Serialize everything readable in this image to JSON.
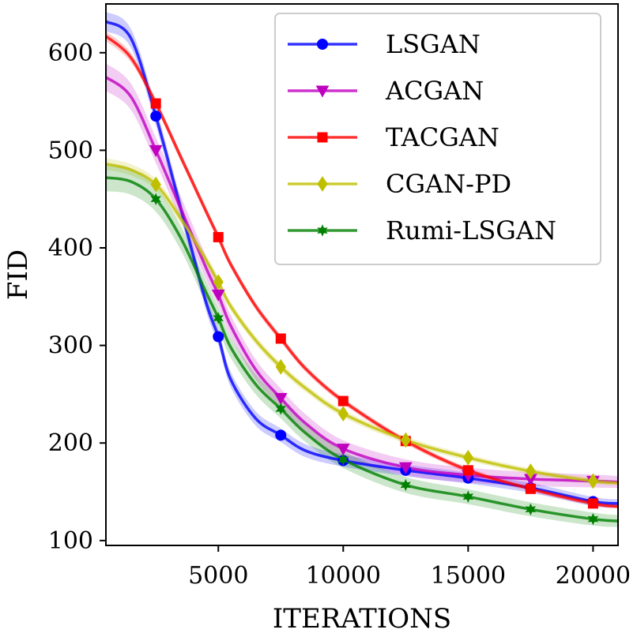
{
  "chart_data": {
    "type": "line",
    "title": "",
    "xlabel": "ITERATIONS",
    "ylabel": "FID",
    "xlim": [
      500,
      21000
    ],
    "ylim": [
      95,
      650
    ],
    "xticks": [
      5000,
      10000,
      15000,
      20000
    ],
    "yticks": [
      100,
      200,
      300,
      400,
      500,
      600
    ],
    "grid": false,
    "legend_position": "top-right",
    "series": [
      {
        "name": "LSGAN",
        "color": "#0000ff",
        "marker": "circle",
        "markers_x": [
          2500,
          5000,
          7500,
          10000,
          12500,
          15000,
          17500,
          20000
        ],
        "markers_y": [
          535,
          309,
          208,
          182,
          172,
          164,
          154,
          140
        ],
        "curve_x": [
          500,
          1500,
          2500,
          3500,
          4500,
          5000,
          5500,
          6500,
          7500,
          8500,
          10000,
          12500,
          15000,
          17500,
          20000,
          21000
        ],
        "curve_y": [
          632,
          615,
          535,
          440,
          345,
          309,
          265,
          225,
          208,
          192,
          182,
          172,
          164,
          154,
          140,
          138
        ],
        "band": 10
      },
      {
        "name": "ACGAN",
        "color": "#bf00bf",
        "marker": "triangle-down",
        "markers_x": [
          2500,
          5000,
          7500,
          10000,
          12500,
          15000,
          17500,
          20000
        ],
        "markers_y": [
          500,
          352,
          246,
          194,
          175,
          167,
          163,
          161
        ],
        "curve_x": [
          500,
          1500,
          2500,
          3500,
          4500,
          5000,
          5500,
          6500,
          7500,
          8500,
          10000,
          12500,
          15000,
          17500,
          20000,
          21000
        ],
        "curve_y": [
          575,
          555,
          500,
          440,
          380,
          352,
          320,
          275,
          246,
          220,
          194,
          175,
          167,
          163,
          161,
          160
        ],
        "band": 14
      },
      {
        "name": "TACGAN",
        "color": "#ff0000",
        "marker": "square",
        "markers_x": [
          2500,
          5000,
          7500,
          10000,
          12500,
          15000,
          17500,
          20000
        ],
        "markers_y": [
          548,
          411,
          307,
          243,
          202,
          172,
          153,
          138
        ],
        "curve_x": [
          500,
          1500,
          2500,
          3500,
          4500,
          5000,
          5500,
          6500,
          7500,
          8500,
          10000,
          12500,
          15000,
          17500,
          20000,
          21000
        ],
        "curve_y": [
          617,
          595,
          548,
          493,
          438,
          411,
          383,
          340,
          307,
          276,
          243,
          202,
          172,
          153,
          138,
          135
        ],
        "band": 5
      },
      {
        "name": "CGAN-PD",
        "color": "#bfbf00",
        "marker": "diamond",
        "markers_x": [
          2500,
          5000,
          7500,
          10000,
          12500,
          15000,
          17500,
          20000
        ],
        "markers_y": [
          465,
          365,
          278,
          230,
          203,
          185,
          171,
          161
        ],
        "curve_x": [
          500,
          1500,
          2500,
          3500,
          4500,
          5000,
          5500,
          6500,
          7500,
          8500,
          10000,
          12500,
          15000,
          17500,
          20000,
          21000
        ],
        "curve_y": [
          486,
          480,
          465,
          430,
          388,
          365,
          340,
          305,
          278,
          256,
          230,
          203,
          185,
          171,
          161,
          159
        ],
        "band": 6
      },
      {
        "name": "Rumi-LSGAN",
        "color": "#008000",
        "marker": "star",
        "markers_x": [
          2500,
          5000,
          7500,
          10000,
          12500,
          15000,
          17500,
          20000
        ],
        "markers_y": [
          450,
          328,
          235,
          183,
          157,
          145,
          132,
          122
        ],
        "curve_x": [
          500,
          1500,
          2500,
          3500,
          4500,
          5000,
          5500,
          6500,
          7500,
          8500,
          10000,
          12500,
          15000,
          17500,
          20000,
          21000
        ],
        "curve_y": [
          472,
          468,
          450,
          410,
          355,
          328,
          298,
          260,
          235,
          210,
          183,
          157,
          145,
          132,
          122,
          120
        ],
        "band": 14
      }
    ]
  }
}
